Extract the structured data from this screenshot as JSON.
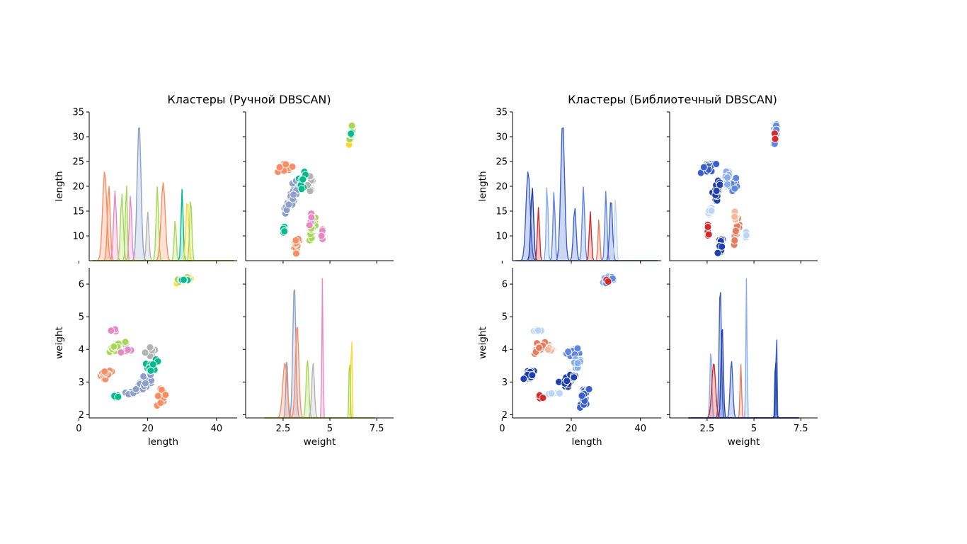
{
  "palettes": {
    "manual": [
      "#fc8d62",
      "#8da0cb",
      "#e78ac3",
      "#a6d854",
      "#ffd92f",
      "#e5c494",
      "#b3b3b3",
      "#00bc8c",
      "#66c2a5"
    ],
    "library": [
      "#1f3fae",
      "#3a5fcd",
      "#5f86e3",
      "#88aef0",
      "#bcd4f6",
      "#e2e4ea",
      "#f6b79c",
      "#ea7a5c",
      "#d42a2a"
    ]
  },
  "chart_data": [
    {
      "type": "pairplot",
      "title": "Кластеры (Ручной DBSCAN)",
      "variables": [
        "length",
        "weight"
      ],
      "palette": "manual",
      "axes": {
        "length": {
          "label": "length",
          "range": [
            3,
            46
          ],
          "row_range": [
            5,
            35
          ],
          "ticks": [
            0,
            20,
            40
          ],
          "row_ticks": [
            10,
            15,
            20,
            25,
            30,
            35
          ]
        },
        "weight": {
          "label": "weight",
          "range": [
            0.5,
            8.4
          ],
          "row_range": [
            1.9,
            6.5
          ],
          "ticks": [
            2.5,
            5.0,
            7.5
          ],
          "row_ticks": [
            2,
            3,
            4,
            5,
            6
          ]
        }
      },
      "clusters": [
        {
          "length": [
            6,
            10
          ],
          "weight": [
            3.05,
            3.4
          ],
          "n": 30,
          "color": 0
        },
        {
          "length": [
            22.5,
            25.5
          ],
          "weight": [
            2.15,
            3.1
          ],
          "n": 22,
          "color": 0
        },
        {
          "length": [
            13,
            17
          ],
          "weight": [
            2.55,
            2.75
          ],
          "n": 10,
          "color": 1
        },
        {
          "length": [
            16,
            22
          ],
          "weight": [
            2.75,
            3.3
          ],
          "n": 26,
          "color": 1
        },
        {
          "length": [
            8,
            12
          ],
          "weight": [
            4.5,
            4.65
          ],
          "n": 8,
          "color": 2
        },
        {
          "length": [
            8,
            14
          ],
          "weight": [
            3.85,
            4.25
          ],
          "n": 16,
          "color": 3
        },
        {
          "length": [
            18,
            23
          ],
          "weight": [
            3.7,
            4.15
          ],
          "n": 14,
          "color": 6
        },
        {
          "length": [
            12,
            16
          ],
          "weight": [
            3.9,
            4.1
          ],
          "n": 8,
          "color": 2
        },
        {
          "length": [
            19,
            24
          ],
          "weight": [
            3.3,
            3.8
          ],
          "n": 10,
          "color": 7
        },
        {
          "length": [
            9,
            13
          ],
          "weight": [
            2.45,
            2.65
          ],
          "n": 5,
          "color": 7
        },
        {
          "length": [
            28,
            33
          ],
          "weight": [
            6.0,
            6.25
          ],
          "n": 10,
          "color": 4
        },
        {
          "length": [
            28,
            33
          ],
          "weight": [
            6.0,
            6.25
          ],
          "n": 6,
          "color": 3
        },
        {
          "length": [
            28,
            33
          ],
          "weight": [
            6.0,
            6.25
          ],
          "n": 5,
          "color": 7
        }
      ],
      "kde": {
        "length": [
          {
            "center": 17.5,
            "width": 0.55,
            "height": 33.7,
            "color": 1
          },
          {
            "center": 7.5,
            "width": 0.6,
            "height": 21.8,
            "color": 0
          },
          {
            "center": 8.7,
            "width": 0.4,
            "height": 18.5,
            "color": 0
          },
          {
            "center": 10.5,
            "width": 0.4,
            "height": 17.0,
            "color": 2
          },
          {
            "center": 12.5,
            "width": 0.4,
            "height": 16.3,
            "color": 3
          },
          {
            "center": 13.8,
            "width": 0.25,
            "height": 20.0,
            "color": 3
          },
          {
            "center": 15.0,
            "width": 0.35,
            "height": 16.0,
            "color": 2
          },
          {
            "center": 20.0,
            "width": 0.35,
            "height": 12.0,
            "color": 6
          },
          {
            "center": 22.8,
            "width": 0.35,
            "height": 18.0,
            "color": 3
          },
          {
            "center": 24.5,
            "width": 0.6,
            "height": 19.0,
            "color": 0
          },
          {
            "center": 28.0,
            "width": 0.3,
            "height": 10.0,
            "color": 3
          },
          {
            "center": 30.0,
            "width": 0.3,
            "height": 17.5,
            "color": 7
          },
          {
            "center": 31.5,
            "width": 0.4,
            "height": 15.0,
            "color": 4
          },
          {
            "center": 32.5,
            "width": 0.3,
            "height": 16.0,
            "color": 3
          }
        ],
        "weight": [
          {
            "center": 3.1,
            "width": 0.08,
            "height": 5.95,
            "color": 1
          },
          {
            "center": 2.7,
            "width": 0.05,
            "height": 2.7,
            "color": 1
          },
          {
            "center": 3.25,
            "width": 0.09,
            "height": 4.15,
            "color": 0
          },
          {
            "center": 2.6,
            "width": 0.12,
            "height": 2.45,
            "color": 0
          },
          {
            "center": 4.6,
            "width": 0.03,
            "height": 6.25,
            "color": 2
          },
          {
            "center": 3.8,
            "width": 0.07,
            "height": 2.6,
            "color": 3
          },
          {
            "center": 4.1,
            "width": 0.07,
            "height": 2.45,
            "color": 6
          },
          {
            "center": 6.15,
            "width": 0.025,
            "height": 4.8,
            "color": 4
          },
          {
            "center": 6.05,
            "width": 0.03,
            "height": 3.15,
            "color": 3
          }
        ]
      }
    },
    {
      "type": "pairplot",
      "title": "Кластеры (Библиотечный DBSCAN)",
      "variables": [
        "length",
        "weight"
      ],
      "palette": "library",
      "axes": {
        "length": {
          "label": "length",
          "range": [
            3,
            46
          ],
          "row_range": [
            5,
            35
          ],
          "ticks": [
            0,
            20,
            40
          ],
          "row_ticks": [
            10,
            15,
            20,
            25,
            30,
            35
          ]
        },
        "weight": {
          "label": "weight",
          "range": [
            0.5,
            8.4
          ],
          "row_range": [
            1.9,
            6.5
          ],
          "ticks": [
            2.5,
            5.0,
            7.5
          ],
          "row_ticks": [
            2,
            3,
            4,
            5,
            6
          ]
        }
      },
      "clusters": [
        {
          "length": [
            6,
            10
          ],
          "weight": [
            3.05,
            3.4
          ],
          "n": 30,
          "color": 0
        },
        {
          "length": [
            22.5,
            25.5
          ],
          "weight": [
            2.15,
            3.1
          ],
          "n": 22,
          "color": 1
        },
        {
          "length": [
            13,
            17
          ],
          "weight": [
            2.55,
            2.75
          ],
          "n": 10,
          "color": 4
        },
        {
          "length": [
            16,
            22
          ],
          "weight": [
            2.75,
            3.3
          ],
          "n": 26,
          "color": 0
        },
        {
          "length": [
            8,
            12
          ],
          "weight": [
            4.5,
            4.65
          ],
          "n": 8,
          "color": 4
        },
        {
          "length": [
            8,
            14
          ],
          "weight": [
            3.85,
            4.25
          ],
          "n": 16,
          "color": 7
        },
        {
          "length": [
            18,
            23
          ],
          "weight": [
            3.7,
            4.15
          ],
          "n": 14,
          "color": 2
        },
        {
          "length": [
            12,
            16
          ],
          "weight": [
            3.9,
            4.1
          ],
          "n": 8,
          "color": 6
        },
        {
          "length": [
            19,
            24
          ],
          "weight": [
            3.3,
            3.8
          ],
          "n": 10,
          "color": 3
        },
        {
          "length": [
            9,
            13
          ],
          "weight": [
            2.45,
            2.65
          ],
          "n": 5,
          "color": 8
        },
        {
          "length": [
            28,
            33
          ],
          "weight": [
            6.0,
            6.25
          ],
          "n": 10,
          "color": 3
        },
        {
          "length": [
            28,
            33
          ],
          "weight": [
            6.0,
            6.25
          ],
          "n": 5,
          "color": 2
        },
        {
          "length": [
            28,
            33
          ],
          "weight": [
            6.0,
            6.25
          ],
          "n": 2,
          "color": 8
        }
      ],
      "kde": {
        "length": [
          {
            "center": 17.5,
            "width": 0.55,
            "height": 33.7,
            "color": 1
          },
          {
            "center": 7.5,
            "width": 0.6,
            "height": 21.8,
            "color": 1
          },
          {
            "center": 8.7,
            "width": 0.4,
            "height": 18.0,
            "color": 0
          },
          {
            "center": 10.5,
            "width": 0.3,
            "height": 13.0,
            "color": 8
          },
          {
            "center": 13.0,
            "width": 0.25,
            "height": 19.8,
            "color": 3
          },
          {
            "center": 15.0,
            "width": 0.3,
            "height": 17.0,
            "color": 2
          },
          {
            "center": 21.0,
            "width": 0.4,
            "height": 13.0,
            "color": 1
          },
          {
            "center": 23.5,
            "width": 0.35,
            "height": 18.0,
            "color": 2
          },
          {
            "center": 25.5,
            "width": 0.3,
            "height": 12.0,
            "color": 8
          },
          {
            "center": 28.0,
            "width": 0.25,
            "height": 10.5,
            "color": 7
          },
          {
            "center": 30.0,
            "width": 0.3,
            "height": 17.0,
            "color": 2
          },
          {
            "center": 31.5,
            "width": 0.4,
            "height": 15.3,
            "color": 1
          },
          {
            "center": 32.8,
            "width": 0.25,
            "height": 16.0,
            "color": 4
          }
        ],
        "weight": [
          {
            "center": 3.2,
            "width": 0.06,
            "height": 5.95,
            "color": 1
          },
          {
            "center": 3.3,
            "width": 0.06,
            "height": 4.15,
            "color": 0
          },
          {
            "center": 2.7,
            "width": 0.05,
            "height": 3.1,
            "color": 3
          },
          {
            "center": 2.85,
            "width": 0.1,
            "height": 2.45,
            "color": 8
          },
          {
            "center": 4.6,
            "width": 0.03,
            "height": 6.25,
            "color": 3
          },
          {
            "center": 3.8,
            "width": 0.07,
            "height": 2.55,
            "color": 1
          },
          {
            "center": 4.3,
            "width": 0.04,
            "height": 2.4,
            "color": 7
          },
          {
            "center": 6.2,
            "width": 0.025,
            "height": 4.8,
            "color": 1
          },
          {
            "center": 6.15,
            "width": 0.03,
            "height": 3.15,
            "color": 0
          }
        ]
      }
    }
  ]
}
